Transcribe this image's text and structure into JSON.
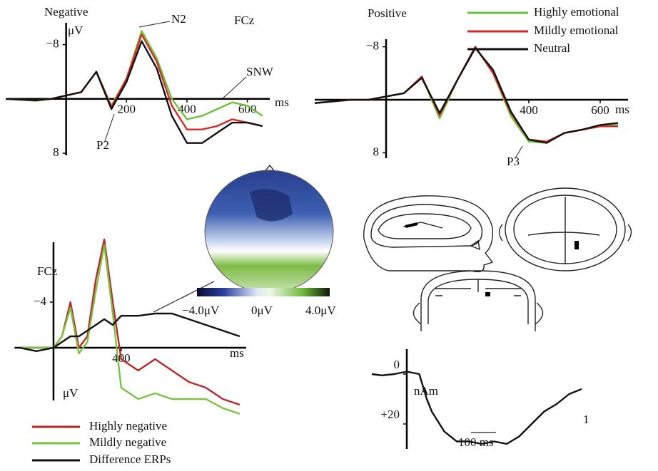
{
  "chart_data": [
    {
      "type": "line",
      "title": "Negative",
      "y_label": "μV",
      "x_label": "ms",
      "channel": "FCz",
      "annotations": [
        "N2",
        "SNW",
        "P2"
      ],
      "x": [
        -200,
        -100,
        -50,
        0,
        50,
        100,
        150,
        200,
        250,
        300,
        350,
        400,
        450,
        500,
        550,
        600,
        650
      ],
      "series": [
        {
          "color": "#6cc23a",
          "values": [
            0,
            0.3,
            0,
            -0.5,
            -1,
            -4,
            1,
            -3,
            -10,
            -6,
            0,
            3,
            2.5,
            1.5,
            0.5,
            1,
            2.5
          ]
        },
        {
          "color": "#d42a2a",
          "values": [
            0,
            0.2,
            0,
            -0.5,
            -1,
            -4,
            1.2,
            -3,
            -9.5,
            -5.5,
            1,
            4.5,
            4.5,
            4,
            3,
            3.5,
            4
          ]
        },
        {
          "color": "#111111",
          "values": [
            0,
            0.2,
            0,
            -0.5,
            -1,
            -4,
            1.5,
            -2.5,
            -8.5,
            -4.5,
            2.5,
            6.5,
            6.5,
            5,
            3.5,
            3.5,
            4
          ]
        }
      ],
      "xlim": [
        -200,
        660
      ],
      "ylim": [
        8,
        -11
      ],
      "xticks": [
        200,
        400,
        600
      ],
      "yticks": [
        {
          "value": -8,
          "label": "−8"
        },
        8
      ]
    },
    {
      "type": "line",
      "title": "Positive",
      "x_label": "ms",
      "annotations": [
        "P3"
      ],
      "x": [
        -200,
        -100,
        -50,
        0,
        50,
        100,
        150,
        200,
        250,
        300,
        350,
        400,
        450,
        500,
        550,
        600,
        650
      ],
      "series": [
        {
          "name": "Highly emotional",
          "color": "#6cc23a",
          "values": [
            0.5,
            0,
            0,
            -0.5,
            -1,
            -3.5,
            2.8,
            -3,
            -8,
            -4,
            2.5,
            6.3,
            6.5,
            5,
            4.5,
            4,
            3.8
          ]
        },
        {
          "name": "Mildly emotional",
          "color": "#d42a2a",
          "values": [
            0.5,
            0,
            0,
            -0.5,
            -1,
            -3.5,
            2.3,
            -3,
            -8,
            -4,
            2,
            6,
            6.3,
            5,
            4.5,
            4,
            4
          ]
        },
        {
          "name": "Neutral",
          "color": "#111111",
          "values": [
            0.5,
            0,
            0,
            -0.5,
            -1,
            -3.3,
            2,
            -3,
            -7.8,
            -4.5,
            1.8,
            6,
            6.5,
            5,
            4.5,
            3.8,
            3.5
          ]
        }
      ],
      "xlim": [
        -200,
        680
      ],
      "ylim": [
        8,
        -10
      ],
      "xticks": [
        400,
        600
      ],
      "yticks": [
        {
          "value": -8,
          "label": "−8"
        },
        8
      ]
    },
    {
      "type": "line",
      "channel": "FCz",
      "y_label": "μV",
      "x_label": "ms",
      "x": [
        -200,
        -100,
        0,
        50,
        100,
        150,
        200,
        250,
        300,
        350,
        400,
        500,
        600,
        700,
        800,
        900,
        1000,
        1100
      ],
      "series": [
        {
          "name": "Highly negative",
          "color": "#b8282a",
          "values": [
            0,
            0,
            0,
            -1,
            -4,
            0,
            -1,
            -6,
            -9.5,
            -4,
            1,
            2,
            1,
            2,
            3,
            3.5,
            4.5,
            5
          ]
        },
        {
          "name": "Mildly negative",
          "color": "#7cc242",
          "values": [
            0,
            0,
            0,
            -1,
            -3.5,
            0.5,
            -0.5,
            -5,
            -9,
            -3,
            3.5,
            4.5,
            4,
            4.5,
            4.5,
            4.5,
            5.3,
            5.8
          ]
        },
        {
          "name": "Difference ERPs",
          "color": "#111111",
          "values": [
            0,
            0.3,
            0,
            -0.5,
            -1,
            -1,
            -1.5,
            -2,
            -2.5,
            -2,
            -2.8,
            -2.8,
            -3,
            -3,
            -2.5,
            -2,
            -1.5,
            -1
          ]
        }
      ],
      "xlim": [
        -230,
        1130
      ],
      "ylim": [
        6,
        -10
      ],
      "xticks": [
        400
      ],
      "yticks": [
        {
          "value": -4,
          "label": "−4"
        }
      ],
      "colorbar_labels": [
        "−4.0μV",
        "0μV",
        "4.0μV"
      ]
    },
    {
      "type": "line",
      "y_label": "nAm",
      "annotations": [
        "1"
      ],
      "scale_bar_label": "100 ms",
      "x": [
        -140,
        -100,
        -50,
        0,
        50,
        80,
        100,
        150,
        200,
        250,
        300,
        350,
        400,
        450,
        500,
        550,
        600,
        650,
        700
      ],
      "series": [
        {
          "color": "#111111",
          "values": [
            0,
            0.5,
            0,
            -1,
            0,
            10,
            15,
            23,
            27,
            27,
            28,
            27,
            28,
            25,
            20,
            15,
            12,
            8,
            6
          ]
        }
      ],
      "xlim": [
        -140,
        720
      ],
      "ylim": [
        -10,
        30
      ],
      "yticks": [
        {
          "value": 20,
          "label": "+20"
        },
        0
      ]
    }
  ]
}
